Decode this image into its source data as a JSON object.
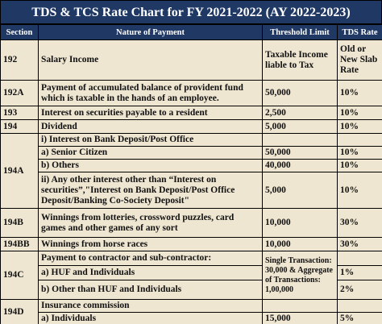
{
  "title": "TDS & TCS Rate Chart for FY 2021-2022 (AY 2022-2023)",
  "table": {
    "header": [
      "Section",
      "Nature of Payment",
      "Threshold Limit",
      "TDS Rate"
    ],
    "rows": [
      [
        "192",
        "Salary Income",
        "Taxable Income liable to Tax",
        "Old or New Slab Rate"
      ],
      [
        "192A",
        "Payment of accumulated balance of provident fund which is taxable in the hands of an employee.",
        "50,000",
        "10%"
      ],
      [
        "193",
        "Interest on securities payable to a resident",
        "2,500",
        "10%"
      ],
      [
        "194",
        "Dividend",
        "5,000",
        "10%"
      ],
      [
        "194A",
        "i) Interest on Bank Deposit/Post Office"
      ],
      [
        "a) Senior Citizen",
        "50,000",
        "10%"
      ],
      [
        "b) Others",
        "40,000",
        "10%"
      ],
      [
        "ii) Any other interest other than “Interest on securities”,\"Interest on Bank Deposit/Post Office Deposit/Banking Co-Society Deposit\"",
        "5,000",
        "10%"
      ],
      [
        "194B",
        "Winnings from lotteries, crossword puzzles, card games and other games of any sort",
        "10,000",
        "30%"
      ],
      [
        "194BB",
        "Winnings from horse races",
        "10,000",
        "30%"
      ],
      [
        "194C",
        "Payment to contractor and sub-contractor:",
        "Single Transaction: 30,000 & Aggregate of Transactions: 1,00,000"
      ],
      [
        "a) HUF and Individuals",
        "1%"
      ],
      [
        "b) Other than HUF and Individuals",
        "2%"
      ],
      [
        "194D",
        "Insurance commission"
      ],
      [
        "a) Individuals",
        "15,000",
        "5%"
      ]
    ]
  }
}
